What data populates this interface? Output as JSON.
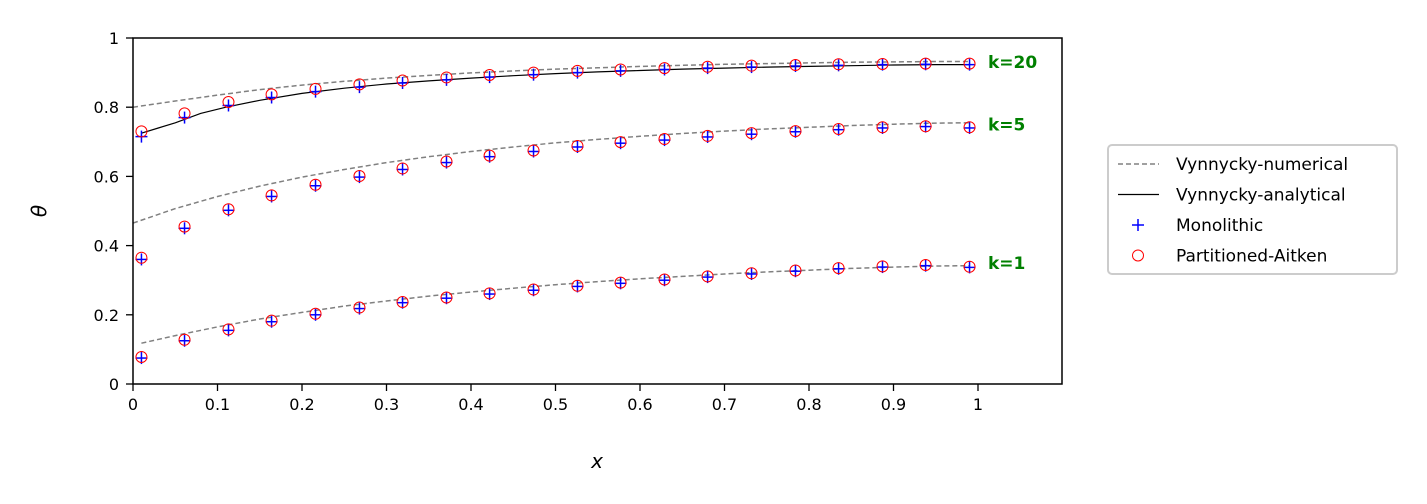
{
  "chart_data": {
    "type": "line",
    "xlabel": "x",
    "ylabel": "θ",
    "xlim": [
      0,
      1.1
    ],
    "ylim": [
      0,
      1
    ],
    "xticks": [
      "0",
      "0.1",
      "0.2",
      "0.3",
      "0.4",
      "0.5",
      "0.6",
      "0.7",
      "0.8",
      "0.9",
      "1"
    ],
    "yticks": [
      "0",
      "0.2",
      "0.4",
      "0.6",
      "0.8",
      "1"
    ],
    "grid": false,
    "legend_position": "outside-right",
    "legend": [
      {
        "label": "Vynnycky-numerical",
        "style": "dashed-line",
        "color": "#808080"
      },
      {
        "label": "Vynnycky-analytical",
        "style": "solid-line",
        "color": "#000000"
      },
      {
        "label": "Monolithic",
        "style": "plus-marker",
        "color": "#0000ff"
      },
      {
        "label": "Partitioned-Aitken",
        "style": "circle-marker",
        "color": "#ff0000"
      }
    ],
    "curve_labels": [
      {
        "text": "k=20",
        "y": 0.93
      },
      {
        "text": "k=5",
        "y": 0.75
      },
      {
        "text": "k=1",
        "y": 0.35
      }
    ],
    "x_points": [
      0.01,
      0.061,
      0.113,
      0.164,
      0.216,
      0.268,
      0.319,
      0.371,
      0.422,
      0.474,
      0.526,
      0.577,
      0.629,
      0.68,
      0.732,
      0.784,
      0.835,
      0.887,
      0.938,
      0.99
    ],
    "series": [
      {
        "name": "Vynnycky-numerical",
        "group": "k=20",
        "kind": "dashed",
        "x": [
          0.0,
          0.05,
          0.1,
          0.15,
          0.2,
          0.25,
          0.3,
          0.35,
          0.4,
          0.45,
          0.5,
          0.55,
          0.6,
          0.65,
          0.7,
          0.75,
          0.8,
          0.85,
          0.9,
          0.95,
          0.99
        ],
        "y": [
          0.8,
          0.818,
          0.835,
          0.851,
          0.864,
          0.875,
          0.884,
          0.892,
          0.899,
          0.905,
          0.91,
          0.914,
          0.918,
          0.921,
          0.924,
          0.926,
          0.928,
          0.93,
          0.931,
          0.932,
          0.932
        ]
      },
      {
        "name": "Vynnycky-analytical",
        "group": "k=20",
        "kind": "solid",
        "x": [
          0.01,
          0.03,
          0.05,
          0.08,
          0.11,
          0.15,
          0.2,
          0.25,
          0.3,
          0.35,
          0.4,
          0.45,
          0.5,
          0.55,
          0.6,
          0.65,
          0.7,
          0.75,
          0.8,
          0.85,
          0.9,
          0.95,
          0.99
        ],
        "y": [
          0.725,
          0.74,
          0.755,
          0.782,
          0.8,
          0.82,
          0.84,
          0.855,
          0.867,
          0.876,
          0.884,
          0.891,
          0.897,
          0.902,
          0.906,
          0.91,
          0.913,
          0.916,
          0.918,
          0.92,
          0.922,
          0.923,
          0.923
        ]
      },
      {
        "name": "Monolithic",
        "group": "k=20",
        "kind": "plus",
        "y": [
          0.715,
          0.77,
          0.805,
          0.828,
          0.845,
          0.858,
          0.87,
          0.879,
          0.887,
          0.894,
          0.9,
          0.905,
          0.909,
          0.913,
          0.916,
          0.919,
          0.921,
          0.923,
          0.924,
          0.923
        ]
      },
      {
        "name": "Partitioned-Aitken",
        "group": "k=20",
        "kind": "circle",
        "y": [
          0.73,
          0.782,
          0.815,
          0.837,
          0.853,
          0.866,
          0.877,
          0.886,
          0.893,
          0.9,
          0.905,
          0.909,
          0.913,
          0.917,
          0.92,
          0.922,
          0.924,
          0.925,
          0.926,
          0.926
        ]
      },
      {
        "name": "Vynnycky-numerical",
        "group": "k=5",
        "kind": "dashed",
        "x": [
          0.0,
          0.05,
          0.1,
          0.15,
          0.2,
          0.25,
          0.3,
          0.35,
          0.4,
          0.45,
          0.5,
          0.55,
          0.6,
          0.65,
          0.7,
          0.75,
          0.8,
          0.85,
          0.9,
          0.95,
          0.99
        ],
        "y": [
          0.465,
          0.507,
          0.542,
          0.572,
          0.598,
          0.62,
          0.64,
          0.657,
          0.672,
          0.685,
          0.697,
          0.707,
          0.716,
          0.724,
          0.731,
          0.737,
          0.742,
          0.747,
          0.751,
          0.754,
          0.755
        ]
      },
      {
        "name": "Monolithic",
        "group": "k=5",
        "kind": "plus",
        "y": [
          0.36,
          0.45,
          0.502,
          0.542,
          0.573,
          0.598,
          0.62,
          0.64,
          0.657,
          0.672,
          0.685,
          0.696,
          0.705,
          0.714,
          0.722,
          0.729,
          0.735,
          0.74,
          0.744,
          0.74
        ]
      },
      {
        "name": "Partitioned-Aitken",
        "group": "k=5",
        "kind": "circle",
        "y": [
          0.365,
          0.455,
          0.505,
          0.545,
          0.576,
          0.601,
          0.623,
          0.643,
          0.66,
          0.675,
          0.688,
          0.699,
          0.708,
          0.717,
          0.725,
          0.731,
          0.737,
          0.742,
          0.745,
          0.742
        ]
      },
      {
        "name": "Vynnycky-numerical",
        "group": "k=1",
        "kind": "dashed",
        "x": [
          0.01,
          0.05,
          0.1,
          0.15,
          0.2,
          0.25,
          0.3,
          0.35,
          0.4,
          0.45,
          0.5,
          0.55,
          0.6,
          0.65,
          0.7,
          0.75,
          0.8,
          0.85,
          0.9,
          0.95,
          0.99
        ],
        "y": [
          0.118,
          0.14,
          0.165,
          0.188,
          0.207,
          0.225,
          0.24,
          0.254,
          0.266,
          0.277,
          0.287,
          0.296,
          0.304,
          0.311,
          0.318,
          0.324,
          0.329,
          0.334,
          0.338,
          0.341,
          0.342
        ]
      },
      {
        "name": "Monolithic",
        "group": "k=1",
        "kind": "plus",
        "y": [
          0.075,
          0.125,
          0.155,
          0.18,
          0.2,
          0.218,
          0.235,
          0.248,
          0.26,
          0.271,
          0.282,
          0.291,
          0.3,
          0.309,
          0.318,
          0.326,
          0.333,
          0.338,
          0.342,
          0.337
        ]
      },
      {
        "name": "Partitioned-Aitken",
        "group": "k=1",
        "kind": "circle",
        "y": [
          0.078,
          0.128,
          0.158,
          0.183,
          0.203,
          0.221,
          0.237,
          0.25,
          0.262,
          0.273,
          0.284,
          0.293,
          0.302,
          0.311,
          0.32,
          0.328,
          0.335,
          0.34,
          0.344,
          0.339
        ]
      }
    ]
  }
}
